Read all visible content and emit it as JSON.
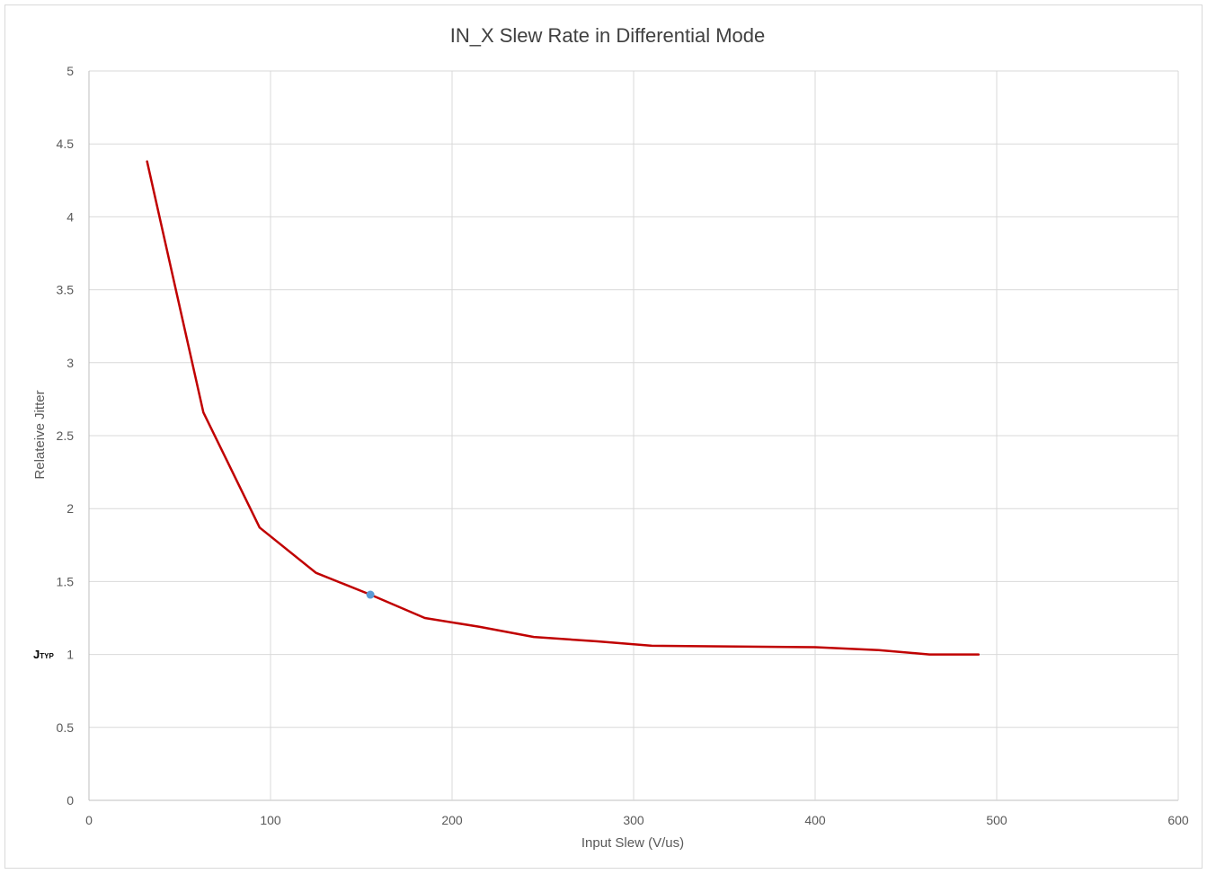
{
  "chart_data": {
    "type": "line",
    "title": "IN_X Slew Rate in Differential Mode",
    "xlabel": "Input Slew (V/us)",
    "ylabel": "Relateive Jitter",
    "xlim": [
      0,
      600
    ],
    "ylim": [
      0,
      5
    ],
    "x_ticks": [
      "0",
      "100",
      "200",
      "300",
      "400",
      "500",
      "600"
    ],
    "y_ticks": [
      "0",
      "0.5",
      "1",
      "1.5",
      "2",
      "2.5",
      "3",
      "3.5",
      "4",
      "4.5",
      "5"
    ],
    "grid": true,
    "series": [
      {
        "color": "#C00000",
        "points": [
          [
            32,
            4.38
          ],
          [
            63,
            2.66
          ],
          [
            94,
            1.87
          ],
          [
            125,
            1.56
          ],
          [
            155,
            1.41
          ],
          [
            185,
            1.25
          ],
          [
            215,
            1.19
          ],
          [
            245,
            1.12
          ],
          [
            280,
            1.09
          ],
          [
            310,
            1.06
          ],
          [
            400,
            1.05
          ],
          [
            435,
            1.03
          ],
          [
            463,
            1.0
          ],
          [
            490,
            1.0
          ]
        ]
      }
    ],
    "highlight_point": {
      "x": 155,
      "y": 1.41,
      "color": "#5B9BD5"
    },
    "annotation": {
      "main": "J",
      "sub": "TYP",
      "at_y": 1
    }
  }
}
